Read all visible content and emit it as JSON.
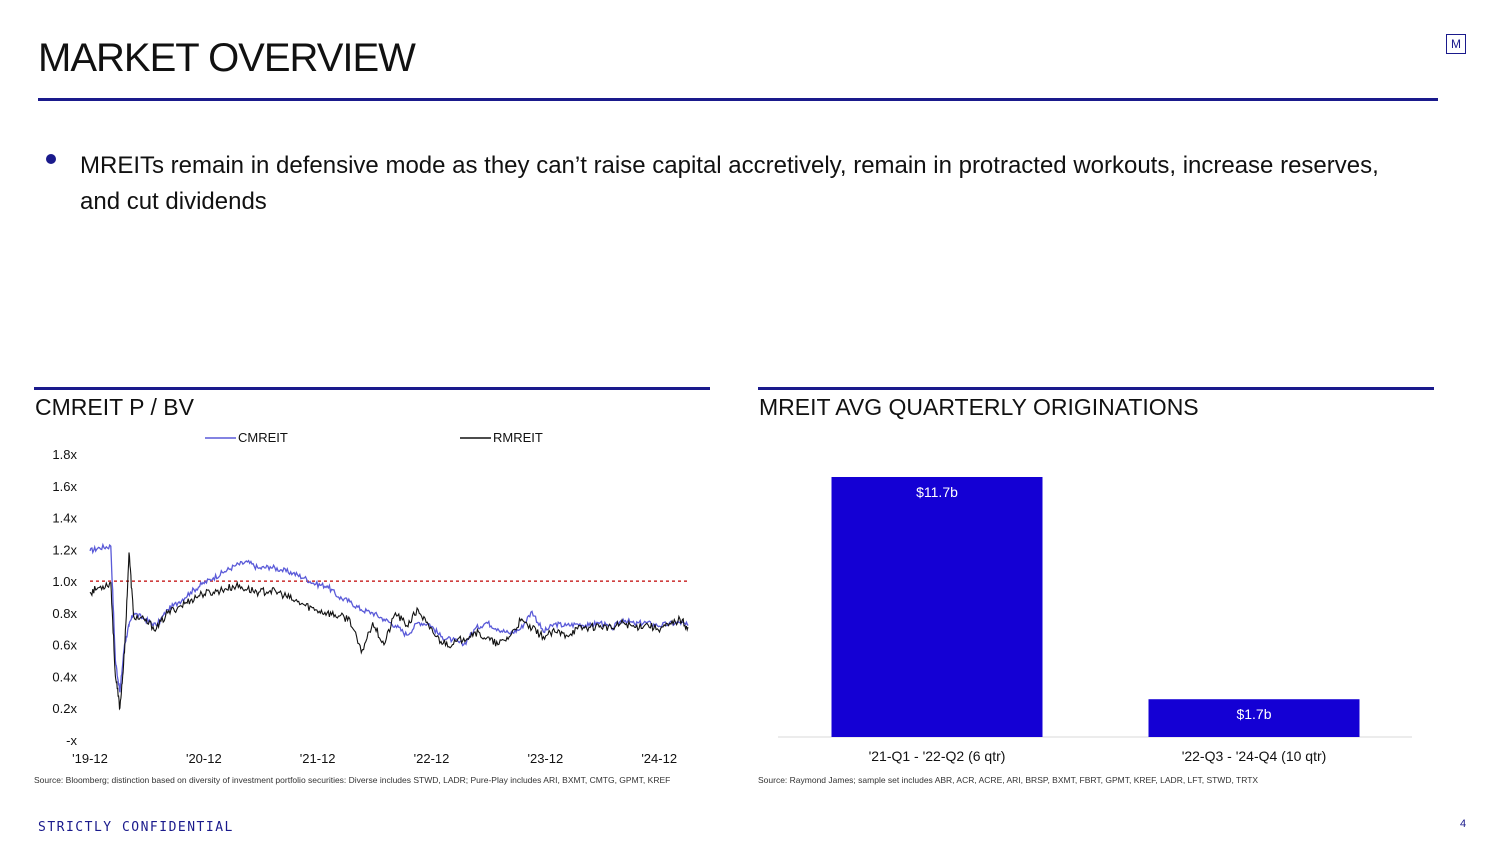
{
  "header": {
    "title": "MARKET OVERVIEW",
    "logo_letter": "M"
  },
  "bullet": {
    "text": "MREITs remain in defensive mode as they can’t raise capital accretively, remain in protracted workouts, increase reserves, and cut dividends"
  },
  "left_panel": {
    "title": "CMREIT P / BV",
    "source": "Source: Bloomberg; distinction based on diversity of investment portfolio securities: Diverse includes STWD, LADR; Pure-Play includes ARI, BXMT, CMTG, GPMT, KREF"
  },
  "right_panel": {
    "title": "MREIT AVG QUARTERLY ORIGINATIONS",
    "source": "Source: Raymond James; sample set includes ABR, ACR, ACRE, ARI, BRSP, BXMT, FBRT, GPMT, KREF, LADR, LFT, STWD, TRTX"
  },
  "footer": {
    "confidential": "STRICTLY CONFIDENTIAL",
    "page": "4"
  },
  "colors": {
    "accent": "#1a1a8c",
    "cmreit": "#5a5ad8",
    "rmreit": "#111111",
    "bar": "#1400d4",
    "ref_line": "#c00000"
  },
  "chart_data": [
    {
      "type": "line",
      "xlabel": "",
      "ylabel": "",
      "x_tick_labels": [
        "'19-12",
        "'20-12",
        "'21-12",
        "'22-12",
        "'23-12",
        "'24-12"
      ],
      "y_tick_labels": [
        "-x",
        "0.2x",
        "0.4x",
        "0.6x",
        "0.8x",
        "1.0x",
        "1.2x",
        "1.4x",
        "1.6x",
        "1.8x"
      ],
      "ylim": [
        0,
        1.8
      ],
      "xlim": [
        2019.917,
        2025.17
      ],
      "reference_line": 1.0,
      "legend_position": "top",
      "series": [
        {
          "name": "CMREIT",
          "x": [
            2019.917,
            2020.0,
            2020.1,
            2020.14,
            2020.18,
            2020.22,
            2020.26,
            2020.3,
            2020.4,
            2020.5,
            2020.6,
            2020.7,
            2020.8,
            2020.9,
            2021.0,
            2021.1,
            2021.2,
            2021.3,
            2021.4,
            2021.5,
            2021.6,
            2021.7,
            2021.8,
            2021.9,
            2022.0,
            2022.1,
            2022.2,
            2022.3,
            2022.4,
            2022.5,
            2022.6,
            2022.7,
            2022.8,
            2022.9,
            2023.0,
            2023.1,
            2023.2,
            2023.3,
            2023.4,
            2023.5,
            2023.6,
            2023.7,
            2023.8,
            2023.9,
            2024.0,
            2024.1,
            2024.2,
            2024.3,
            2024.4,
            2024.5,
            2024.6,
            2024.7,
            2024.8,
            2024.9,
            2025.0,
            2025.1,
            2025.17
          ],
          "values": [
            1.19,
            1.21,
            1.22,
            0.5,
            0.3,
            0.6,
            0.72,
            0.8,
            0.76,
            0.72,
            0.82,
            0.87,
            0.93,
            0.98,
            1.02,
            1.06,
            1.1,
            1.12,
            1.08,
            1.09,
            1.07,
            1.05,
            1.02,
            0.98,
            0.97,
            0.9,
            0.87,
            0.82,
            0.8,
            0.76,
            0.72,
            0.66,
            0.74,
            0.73,
            0.65,
            0.63,
            0.6,
            0.7,
            0.74,
            0.7,
            0.67,
            0.7,
            0.81,
            0.68,
            0.73,
            0.72,
            0.73,
            0.72,
            0.74,
            0.7,
            0.76,
            0.73,
            0.74,
            0.72,
            0.73,
            0.74,
            0.72
          ]
        },
        {
          "name": "RMREIT",
          "x": [
            2019.917,
            2020.0,
            2020.1,
            2020.14,
            2020.18,
            2020.22,
            2020.26,
            2020.3,
            2020.4,
            2020.5,
            2020.6,
            2020.7,
            2020.8,
            2020.9,
            2021.0,
            2021.1,
            2021.2,
            2021.3,
            2021.4,
            2021.5,
            2021.6,
            2021.7,
            2021.8,
            2021.9,
            2022.0,
            2022.1,
            2022.2,
            2022.3,
            2022.4,
            2022.5,
            2022.6,
            2022.7,
            2022.8,
            2022.9,
            2023.0,
            2023.1,
            2023.2,
            2023.3,
            2023.4,
            2023.5,
            2023.6,
            2023.7,
            2023.8,
            2023.9,
            2024.0,
            2024.1,
            2024.2,
            2024.3,
            2024.4,
            2024.5,
            2024.6,
            2024.7,
            2024.8,
            2024.9,
            2025.0,
            2025.1,
            2025.17
          ],
          "values": [
            0.93,
            0.96,
            0.99,
            0.4,
            0.2,
            0.55,
            1.18,
            0.78,
            0.75,
            0.7,
            0.8,
            0.84,
            0.88,
            0.92,
            0.93,
            0.95,
            0.97,
            0.95,
            0.93,
            0.94,
            0.92,
            0.88,
            0.85,
            0.82,
            0.8,
            0.78,
            0.76,
            0.55,
            0.74,
            0.6,
            0.8,
            0.72,
            0.82,
            0.7,
            0.62,
            0.6,
            0.64,
            0.68,
            0.64,
            0.6,
            0.65,
            0.75,
            0.7,
            0.65,
            0.68,
            0.66,
            0.7,
            0.71,
            0.72,
            0.7,
            0.74,
            0.71,
            0.73,
            0.7,
            0.72,
            0.76,
            0.71
          ]
        }
      ]
    },
    {
      "type": "bar",
      "categories": [
        "'21-Q1 - '22-Q2 (6 qtr)",
        "'22-Q3 - '24-Q4 (10 qtr)"
      ],
      "values": [
        11.7,
        1.7
      ],
      "data_labels": [
        "$11.7b",
        "$1.7b"
      ],
      "xlabel": "",
      "ylabel": "",
      "ylim": [
        0,
        11.7
      ]
    }
  ]
}
